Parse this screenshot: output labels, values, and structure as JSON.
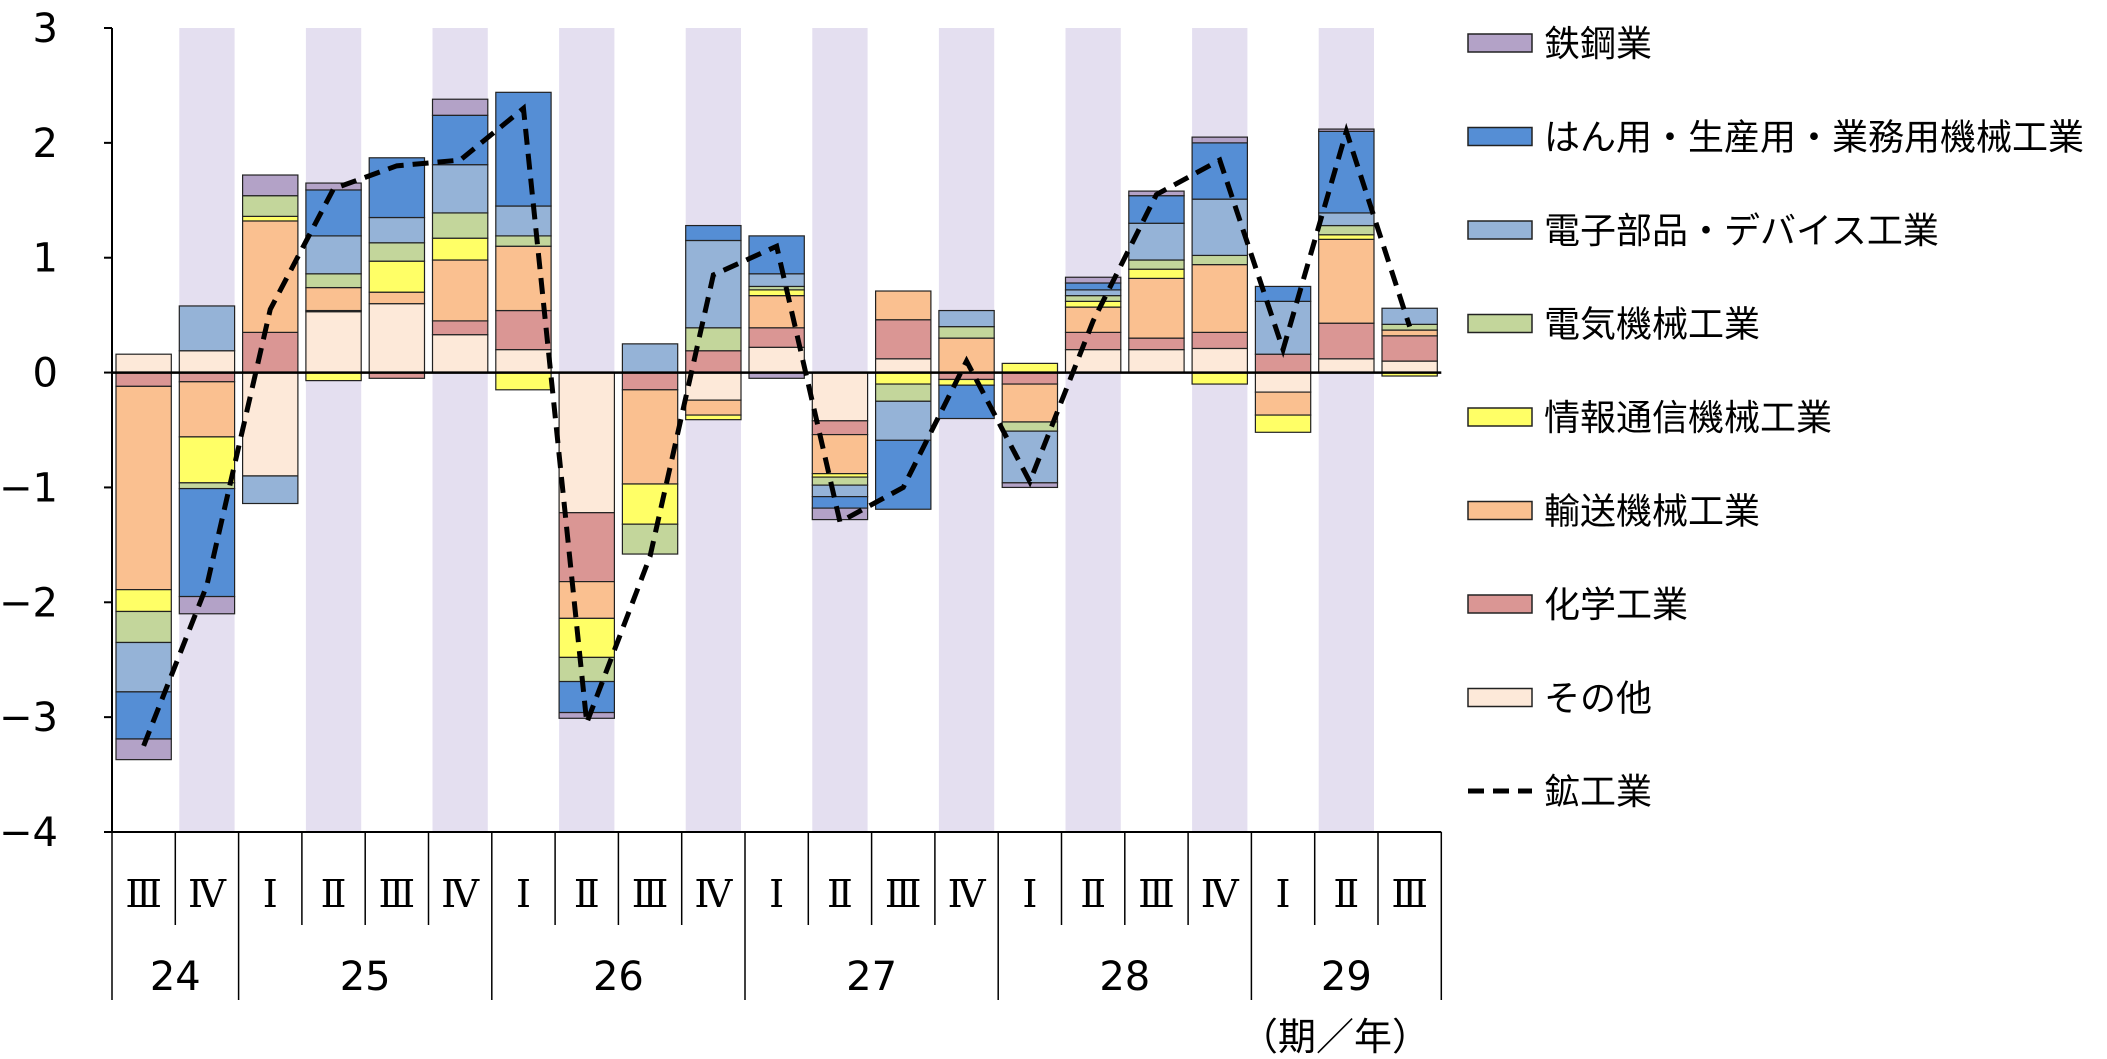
{
  "chart_data": {
    "type": "bar",
    "stacked": true,
    "ylim": [
      -4,
      3
    ],
    "yticks": [
      3,
      2,
      1,
      0,
      -1,
      -2,
      -3,
      -4
    ],
    "ytick_labels": [
      "3",
      "2",
      "1",
      "0",
      "−1",
      "−2",
      "−3",
      "−4"
    ],
    "x_unit_label": "（期／年）",
    "quarters": [
      "Ⅲ",
      "Ⅳ",
      "Ⅰ",
      "Ⅱ",
      "Ⅲ",
      "Ⅳ",
      "Ⅰ",
      "Ⅱ",
      "Ⅲ",
      "Ⅳ",
      "Ⅰ",
      "Ⅱ",
      "Ⅲ",
      "Ⅳ",
      "Ⅰ",
      "Ⅱ",
      "Ⅲ",
      "Ⅳ",
      "Ⅰ",
      "Ⅱ",
      "Ⅲ"
    ],
    "years": [
      {
        "label": "24",
        "start": 0,
        "end": 2
      },
      {
        "label": "25",
        "start": 2,
        "end": 6
      },
      {
        "label": "26",
        "start": 6,
        "end": 10
      },
      {
        "label": "27",
        "start": 10,
        "end": 14
      },
      {
        "label": "28",
        "start": 14,
        "end": 18
      },
      {
        "label": "29",
        "start": 18,
        "end": 21
      }
    ],
    "shaded_periods": [
      1,
      3,
      5,
      7,
      9,
      11,
      13,
      15,
      17,
      19
    ],
    "stack_order": [
      "その他",
      "化学工業",
      "輸送機械工業",
      "情報通信機械工業",
      "電気機械工業",
      "電子部品・デバイス工業",
      "はん用・生産用・業務用機械工業",
      "鉄鋼業"
    ],
    "series": [
      {
        "name": "鉄鋼業",
        "color": "#b3a2c7",
        "values": [
          -0.18,
          -0.15,
          0.18,
          0.06,
          0,
          0.14,
          0,
          -0.05,
          0,
          0,
          -0.05,
          -0.1,
          0,
          0,
          -0.04,
          0.05,
          0.04,
          0.05,
          0,
          0.02,
          0
        ]
      },
      {
        "name": "はん用・生産用・業務用機械工業",
        "color": "#558ed5",
        "values": [
          -0.41,
          -0.94,
          0,
          0.4,
          0.52,
          0.43,
          0.99,
          -0.27,
          0,
          0.13,
          0.33,
          -0.1,
          -0.6,
          -0.29,
          0,
          0.06,
          0.24,
          0.49,
          0.13,
          0.71,
          0
        ]
      },
      {
        "name": "電子部品・デバイス工業",
        "color": "#95b3d7",
        "values": [
          -0.43,
          0.39,
          -0.24,
          0.33,
          0.22,
          0.42,
          0.26,
          0,
          0.25,
          0.76,
          0.11,
          -0.1,
          -0.34,
          0.14,
          -0.45,
          0.05,
          0.32,
          0.49,
          0.46,
          0.11,
          0.14
        ]
      },
      {
        "name": "電気機械工業",
        "color": "#c3d69b",
        "values": [
          -0.27,
          -0.05,
          0.18,
          0.12,
          0.16,
          0.22,
          0.09,
          -0.21,
          -0.26,
          0.2,
          0.03,
          -0.07,
          -0.15,
          0.1,
          -0.08,
          0.05,
          0.08,
          0.08,
          0,
          0.08,
          0.05
        ]
      },
      {
        "name": "情報通信機械工業",
        "color": "#ffff66",
        "values": [
          -0.19,
          -0.4,
          0.04,
          -0.07,
          0.27,
          0.19,
          -0.15,
          -0.34,
          -0.35,
          -0.04,
          0.05,
          -0.03,
          -0.1,
          -0.05,
          0.08,
          0.05,
          0.08,
          -0.1,
          -0.15,
          0.04,
          -0.03
        ]
      },
      {
        "name": "輸送機械工業",
        "color": "#fac090",
        "values": [
          -1.77,
          -0.48,
          0.97,
          0.2,
          0.1,
          0.53,
          0.56,
          -0.32,
          -0.82,
          -0.13,
          0.28,
          -0.34,
          0.25,
          0.3,
          -0.33,
          0.22,
          0.52,
          0.59,
          -0.2,
          0.73,
          0.05
        ]
      },
      {
        "name": "化学工業",
        "color": "#da9694",
        "values": [
          -0.12,
          -0.08,
          0.35,
          0.01,
          -0.05,
          0.12,
          0.34,
          -0.6,
          -0.15,
          0.19,
          0.17,
          -0.12,
          0.34,
          -0.06,
          -0.1,
          0.15,
          0.1,
          0.14,
          0.16,
          0.31,
          0.22
        ]
      },
      {
        "name": "その他",
        "color": "#fde9d9",
        "values": [
          0.16,
          0.19,
          -0.9,
          0.53,
          0.6,
          0.33,
          0.2,
          -1.22,
          0,
          -0.24,
          0.22,
          -0.42,
          0.12,
          0,
          0,
          0.2,
          0.2,
          0.21,
          -0.17,
          0.12,
          0.1
        ]
      }
    ],
    "line": {
      "name": "鉱工業",
      "values": [
        -3.25,
        -1.85,
        0.55,
        1.6,
        1.8,
        1.85,
        2.3,
        -3.05,
        -1.6,
        0.85,
        1.1,
        -1.3,
        -1.0,
        0.1,
        -0.95,
        0.45,
        1.55,
        1.85,
        0.2,
        2.1,
        0.4
      ]
    }
  },
  "legend": [
    {
      "label": "鉄鋼業",
      "color": "#b3a2c7",
      "kind": "box"
    },
    {
      "label": "はん用・生産用・業務用機械工業",
      "color": "#558ed5",
      "kind": "box"
    },
    {
      "label": "電子部品・デバイス工業",
      "color": "#95b3d7",
      "kind": "box"
    },
    {
      "label": "電気機械工業",
      "color": "#c3d69b",
      "kind": "box"
    },
    {
      "label": "情報通信機械工業",
      "color": "#ffff66",
      "kind": "box"
    },
    {
      "label": "輸送機械工業",
      "color": "#fac090",
      "kind": "box"
    },
    {
      "label": "化学工業",
      "color": "#da9694",
      "kind": "box"
    },
    {
      "label": "その他",
      "color": "#fde9d9",
      "kind": "box"
    },
    {
      "label": "鉱工業",
      "color": "#000000",
      "kind": "dash"
    }
  ],
  "colors": {
    "shade": "#e4dff0",
    "axis": "#000000"
  }
}
